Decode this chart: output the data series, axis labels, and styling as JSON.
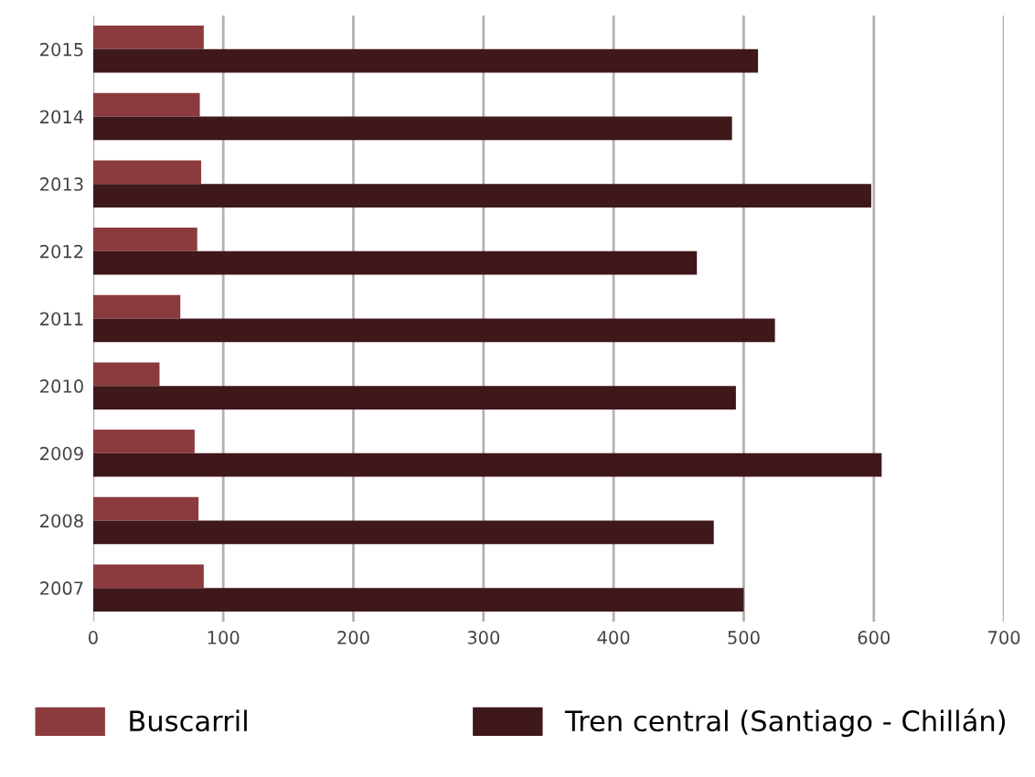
{
  "chart_data": {
    "type": "bar",
    "orientation": "horizontal",
    "categories": [
      "2015",
      "2014",
      "2013",
      "2012",
      "2011",
      "2010",
      "2009",
      "2008",
      "2007"
    ],
    "series": [
      {
        "name": "Buscarril",
        "color": "#8b3a3e",
        "values": [
          85,
          82,
          83,
          80,
          67,
          51,
          78,
          81,
          85
        ]
      },
      {
        "name": "Tren central (Santiago - Chillán)",
        "color": "#3e181b",
        "values": [
          511,
          491,
          598,
          464,
          524,
          494,
          606,
          477,
          500
        ]
      }
    ],
    "xlim": [
      0,
      700
    ],
    "xticks": [
      0,
      100,
      200,
      300,
      400,
      500,
      600,
      700
    ],
    "grid": "x",
    "legend": "bottom"
  }
}
